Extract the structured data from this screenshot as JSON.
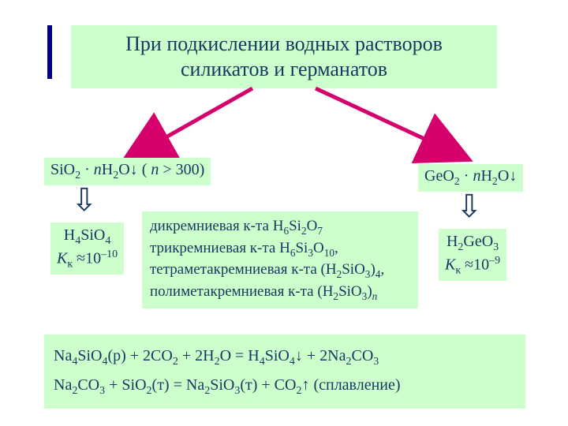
{
  "colors": {
    "box_bg": "#ccffcc",
    "text": "#17375e",
    "accent": "#000080",
    "arrow": "#d6006c",
    "page_bg": "#ffffff"
  },
  "title": "При подкислении водных растворов силикатов и германатов",
  "left_hydrate_html": "SiO<sub>2</sub> · <span class='italic'>n</span>H<sub>2</sub>O↓ ( <span class='italic'>n</span> >  300)",
  "right_hydrate_html": "GeO<sub>2</sub> · <span class='italic'>n</span>H<sub>2</sub>O↓",
  "left_acid_html": "H<sub>4</sub>SiO<sub>4</sub><br><span class='italic'>K</span><sub>к</sub> ≈10<sup>–10</sup>",
  "right_acid_html": "H<sub>2</sub>GeO<sub>3</sub><br><span class='italic'>K</span><sub>к</sub> ≈10<sup>–9</sup>",
  "poly_html": "дикремниевая к-та H<sub>6</sub>Si<sub>2</sub>O<sub>7</sub><br>трикремниевая к-та H<sub>6</sub>Si<sub>3</sub>O<sub>10</sub>,<br>тетраметакремниевая к-та (H<sub>2</sub>SiO<sub>3</sub>)<sub>4</sub>,<br>полиметакремниевая к-та (H<sub>2</sub>SiO<sub>3</sub>)<sub><span class='italic'>n</span></sub>",
  "eq1_html": "Na<sub>4</sub>SiO<sub>4</sub>(р) + 2CO<sub>2</sub> + 2H<sub>2</sub>O = H<sub>4</sub>SiO<sub>4</sub>↓ + 2Na<sub>2</sub>CO<sub>3</sub>",
  "eq2_html": "Na<sub>2</sub>CO<sub>3</sub> + SiO<sub>2</sub>(т) = Na<sub>2</sub>SiO<sub>3</sub>(т) + CO<sub>2</sub>↑ (сплавление)"
}
